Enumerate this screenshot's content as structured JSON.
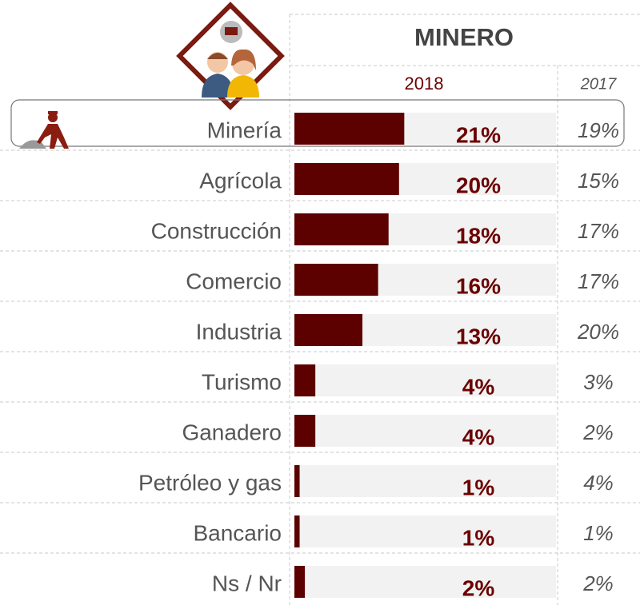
{
  "chart_data": {
    "type": "bar",
    "title": "MINERO",
    "categories": [
      "Minería",
      "Agrícola",
      "Construcción",
      "Comercio",
      "Industria",
      "Turismo",
      "Ganadero",
      "Petróleo y gas",
      "Bancario",
      "Ns / Nr"
    ],
    "series": [
      {
        "name": "2018",
        "color": "#5c0000",
        "values": [
          21,
          20,
          18,
          16,
          13,
          4,
          4,
          1,
          1,
          2
        ],
        "value_labels": [
          "21%",
          "20%",
          "18%",
          "16%",
          "13%",
          "4%",
          "4%",
          "1%",
          "1%",
          "2%"
        ]
      },
      {
        "name": "2017",
        "values": [
          19,
          15,
          17,
          17,
          20,
          3,
          2,
          4,
          1,
          2
        ],
        "value_labels": [
          "19%",
          "15%",
          "17%",
          "17%",
          "20%",
          "3%",
          "2%",
          "4%",
          "1%",
          "2%"
        ]
      }
    ],
    "xlim": [
      0,
      50
    ]
  }
}
